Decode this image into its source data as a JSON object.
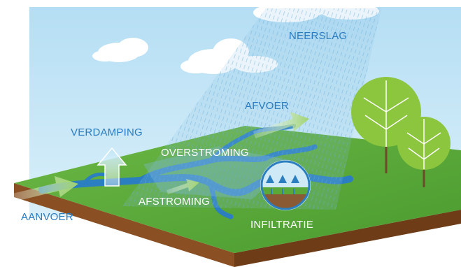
{
  "labels": {
    "neerslag": "NEERSLAG",
    "afvoer": "AFVOER",
    "verdamping": "VERDAMPING",
    "overstroming": "OVERSTROMING",
    "afstroming": "AFSTROMING",
    "aanvoer": "AANVOER",
    "infiltratie": "INFILTRATIE"
  },
  "colors": {
    "sky": "#bfe3f6",
    "grass": "#5aa83a",
    "soil": "#8a4f22",
    "water": "#2b7fc0",
    "rain": "#7fb8de",
    "text_blue": "#2a7cc0",
    "text_white": "#ffffff",
    "arrow_green": "#7fc04a",
    "tree_green": "#8cc63f"
  },
  "icons": {
    "rain": "rain-streaks-icon",
    "cloud": "cloud-icon",
    "tree": "tree-icon",
    "infiltration": "infiltration-badge-icon"
  }
}
